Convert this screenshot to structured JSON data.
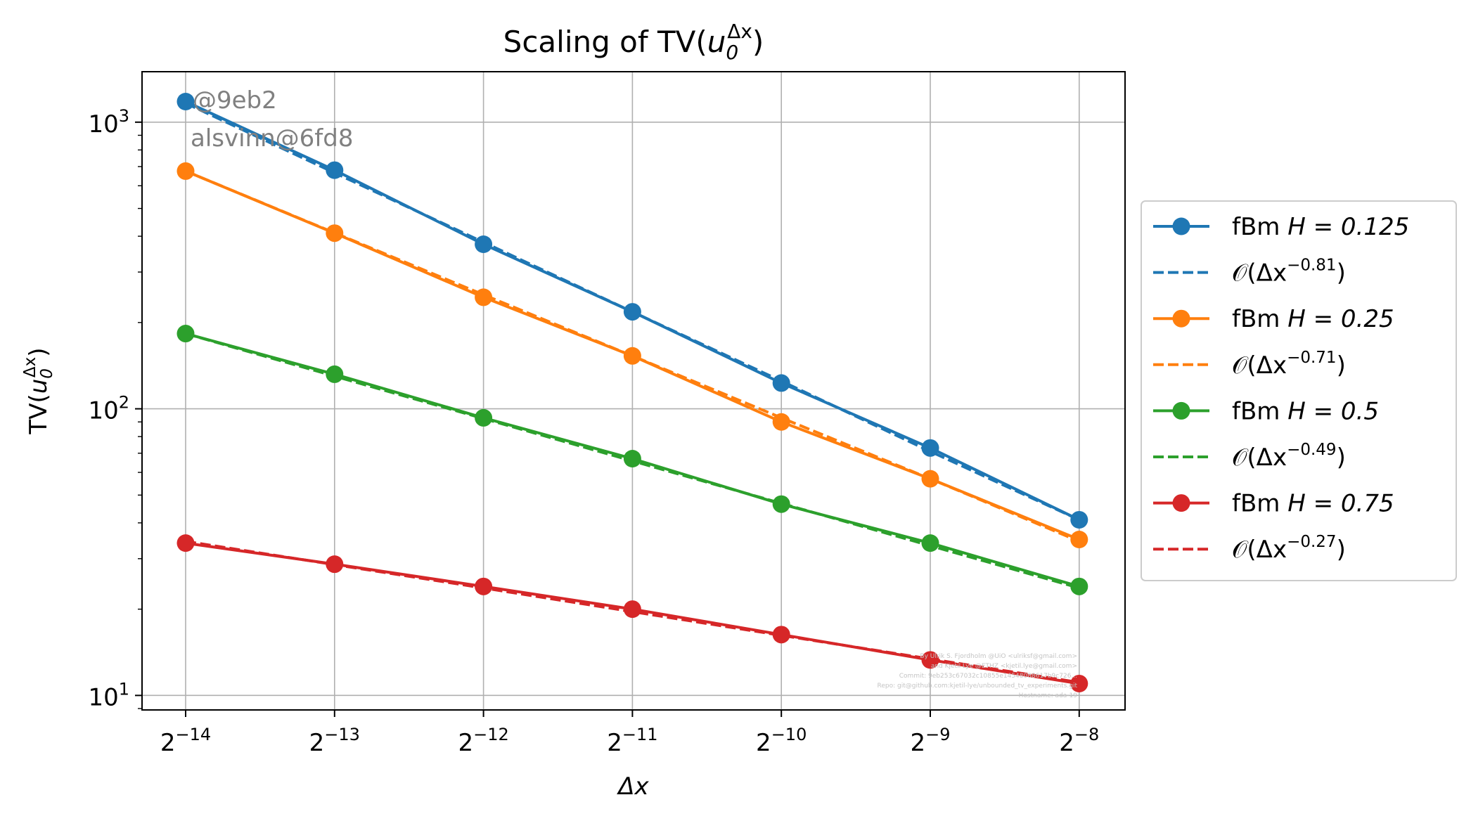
{
  "chart_data": {
    "type": "line",
    "title": {
      "base": "Scaling of TV(",
      "var": "u",
      "sub": "0",
      "sup": "Δx",
      "end": ")"
    },
    "xlabel": "Δx",
    "ylabel": {
      "base": "TV(",
      "var": "u",
      "sub": "0",
      "sup": "Δx",
      "end": ")"
    },
    "x_scale": "log2",
    "y_scale": "log10",
    "x": [
      6.103515625e-05,
      0.0001220703125,
      0.000244140625,
      0.00048828125,
      0.0009765625,
      0.001953125,
      0.00390625
    ],
    "x_ticks": [
      {
        "base": "2",
        "exp": "−14"
      },
      {
        "base": "2",
        "exp": "−13"
      },
      {
        "base": "2",
        "exp": "−12"
      },
      {
        "base": "2",
        "exp": "−11"
      },
      {
        "base": "2",
        "exp": "−10"
      },
      {
        "base": "2",
        "exp": "−9"
      },
      {
        "base": "2",
        "exp": "−8"
      }
    ],
    "y_ticks": [
      {
        "value": 10,
        "base": "10",
        "exp": "1"
      },
      {
        "value": 100,
        "base": "10",
        "exp": "2"
      },
      {
        "value": 1000,
        "base": "10",
        "exp": "3"
      }
    ],
    "ylim": [
      8.9,
      1500
    ],
    "grid": true,
    "legend_position": "outside-right",
    "series": [
      {
        "label": "fBm ",
        "math": "H = 0.125",
        "style": "solid-marker",
        "color": "#1f77b4",
        "values": [
          1180,
          680,
          375,
          218,
          123,
          73,
          41
        ]
      },
      {
        "label": "𝒪(Δx",
        "sup": "−0.81",
        "end": ")",
        "style": "dashed",
        "color": "#1f77b4",
        "values": [
          1165,
          666,
          381,
          218,
          125,
          71,
          41
        ]
      },
      {
        "label": "fBm ",
        "math": "H = 0.25",
        "style": "solid-marker",
        "color": "#ff7f0e",
        "values": [
          675,
          410,
          245,
          153,
          90,
          57,
          35
        ]
      },
      {
        "label": "𝒪(Δx",
        "sup": "−0.71",
        "end": ")",
        "style": "dashed",
        "color": "#ff7f0e",
        "values": [
          675,
          411,
          250,
          153,
          93,
          57,
          34.5
        ]
      },
      {
        "label": "fBm ",
        "math": "H = 0.5",
        "style": "solid-marker",
        "color": "#2ca02c",
        "values": [
          183,
          132,
          93,
          67,
          46.5,
          34,
          24
        ]
      },
      {
        "label": "𝒪(Δx",
        "sup": "−0.49",
        "end": ")",
        "style": "dashed",
        "color": "#2ca02c",
        "values": [
          183,
          130,
          92.5,
          65.8,
          46.8,
          33.3,
          23.7
        ]
      },
      {
        "label": "fBm ",
        "math": "H = 0.75",
        "style": "solid-marker",
        "color": "#d62728",
        "values": [
          34,
          28.7,
          24,
          20,
          16.3,
          13.3,
          11
        ]
      },
      {
        "label": "𝒪(Δx",
        "sup": "−0.27",
        "end": ")",
        "style": "dashed",
        "color": "#d62728",
        "values": [
          34.5,
          28.6,
          23.7,
          19.6,
          16.2,
          13.4,
          11.1
        ]
      }
    ],
    "annotations": [
      "@9eb2",
      "alsvinn@6fd8"
    ],
    "credits": [
      "By Ulrik S. Fjordholm @UiO <ulriksf@gmail.com>",
      "and Kjetil Lye @ETHZ <kjetil.lye@gmail.com>",
      "Commit: 9eb253c67032c10855e14548088617b9c726...",
      "Repo: git@github.com:kjetil-lye/unbounded_tv_experiments.git",
      "Hostname: ada-19"
    ]
  }
}
